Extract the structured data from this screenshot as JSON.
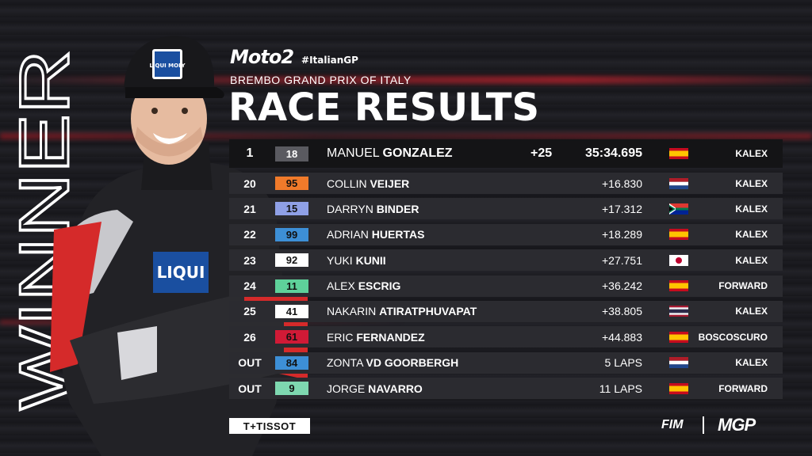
{
  "side_text": "WINNER",
  "brand": {
    "logo": "Moto2",
    "hashtag": "#ItalianGP"
  },
  "event": "BREMBO GRAND PRIX OF ITALY",
  "title": "RACE RESULTS",
  "results": [
    {
      "pos": "1",
      "number": "18",
      "number_color": "#5a5a60",
      "first": "MANUEL",
      "last": "GONZALEZ",
      "points": "+25",
      "time": "35:34.695",
      "flag": "spain-flag",
      "team": "KALEX"
    },
    {
      "pos": "20",
      "number": "95",
      "number_color": "#f07a2a",
      "first": "COLLIN",
      "last": "VEIJER",
      "points": "",
      "time": "+16.830",
      "flag": "netherlands-flag",
      "team": "KALEX"
    },
    {
      "pos": "21",
      "number": "15",
      "number_color": "#8fa0e6",
      "first": "DARRYN",
      "last": "BINDER",
      "points": "",
      "time": "+17.312",
      "flag": "south-africa-flag",
      "team": "KALEX"
    },
    {
      "pos": "22",
      "number": "99",
      "number_color": "#3d8fd6",
      "first": "ADRIAN",
      "last": "HUERTAS",
      "points": "",
      "time": "+18.289",
      "flag": "spain-flag",
      "team": "KALEX"
    },
    {
      "pos": "23",
      "number": "92",
      "number_color": "#ffffff",
      "first": "YUKI",
      "last": "KUNII",
      "points": "",
      "time": "+27.751",
      "flag": "japan-flag",
      "team": "KALEX"
    },
    {
      "pos": "24",
      "number": "11",
      "number_color": "#5ed19a",
      "first": "ALEX",
      "last": "ESCRIG",
      "points": "",
      "time": "+36.242",
      "flag": "spain-flag",
      "team": "FORWARD"
    },
    {
      "pos": "25",
      "number": "41",
      "number_color": "#ffffff",
      "first": "NAKARIN",
      "last": "ATIRATPHUVAPAT",
      "points": "",
      "time": "+38.805",
      "flag": "thailand-flag",
      "team": "KALEX"
    },
    {
      "pos": "26",
      "number": "61",
      "number_color": "#d01a36",
      "first": "ERIC",
      "last": "FERNANDEZ",
      "points": "",
      "time": "+44.883",
      "flag": "spain-flag",
      "team": "BOSCOSCURO"
    },
    {
      "pos": "OUT",
      "number": "84",
      "number_color": "#3d8fd6",
      "first": "ZONTA",
      "last": "VD GOORBERGH",
      "points": "",
      "time": "5 LAPS",
      "flag": "netherlands-flag",
      "team": "KALEX"
    },
    {
      "pos": "OUT",
      "number": "9",
      "number_color": "#7ed8b0",
      "first": "JORGE",
      "last": "NAVARRO",
      "points": "",
      "time": "11 LAPS",
      "flag": "spain-flag",
      "team": "FORWARD"
    }
  ],
  "footer": {
    "sponsor": "T+TISSOT",
    "fim": "FIM",
    "series": "MGP"
  },
  "rider_helmet_text": "LIQUI MOLY",
  "rider_chest_text": "LIQUI",
  "colors": {
    "accent_red": "#d0202a",
    "background": "#1a1a1e",
    "row_bg": "#2b2b30",
    "first_row_bg": "#141416"
  }
}
